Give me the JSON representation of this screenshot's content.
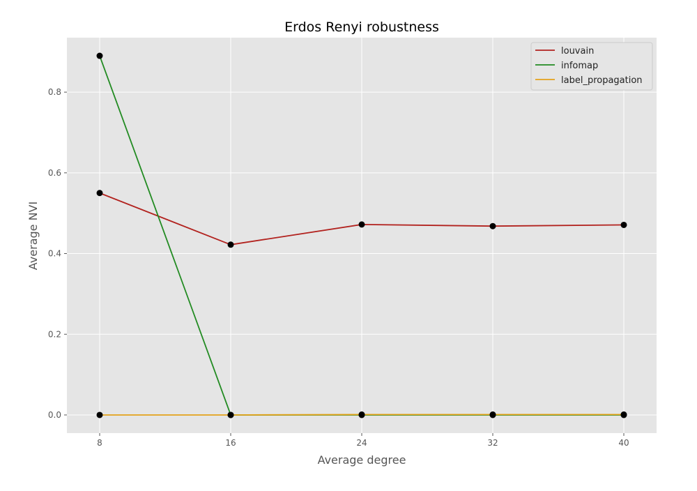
{
  "chart_data": {
    "type": "line",
    "title": "Erdos Renyi robustness",
    "xlabel": "Average degree",
    "ylabel": "Average NVI",
    "x": [
      8,
      16,
      24,
      32,
      40
    ],
    "xticks": [
      "8",
      "16",
      "24",
      "32",
      "40"
    ],
    "yticks": [
      "0.0",
      "0.2",
      "0.4",
      "0.6",
      "0.8"
    ],
    "ytick_values": [
      0.0,
      0.2,
      0.4,
      0.6,
      0.8
    ],
    "xlim": [
      6,
      42
    ],
    "ylim": [
      -0.045,
      0.935
    ],
    "grid": true,
    "legend_position": "top-right",
    "marker_color": "#000000",
    "background_color": "#e5e5e5",
    "series": [
      {
        "name": "louvain",
        "color": "#b2221e",
        "values": [
          0.55,
          0.422,
          0.472,
          0.468,
          0.471
        ]
      },
      {
        "name": "infomap",
        "color": "#228b22",
        "values": [
          0.89,
          0.0,
          0.0,
          0.0,
          0.0
        ]
      },
      {
        "name": "label_propagation",
        "color": "#e3a21a",
        "values": [
          0.0,
          0.0,
          0.001,
          0.001,
          0.001
        ]
      }
    ]
  }
}
